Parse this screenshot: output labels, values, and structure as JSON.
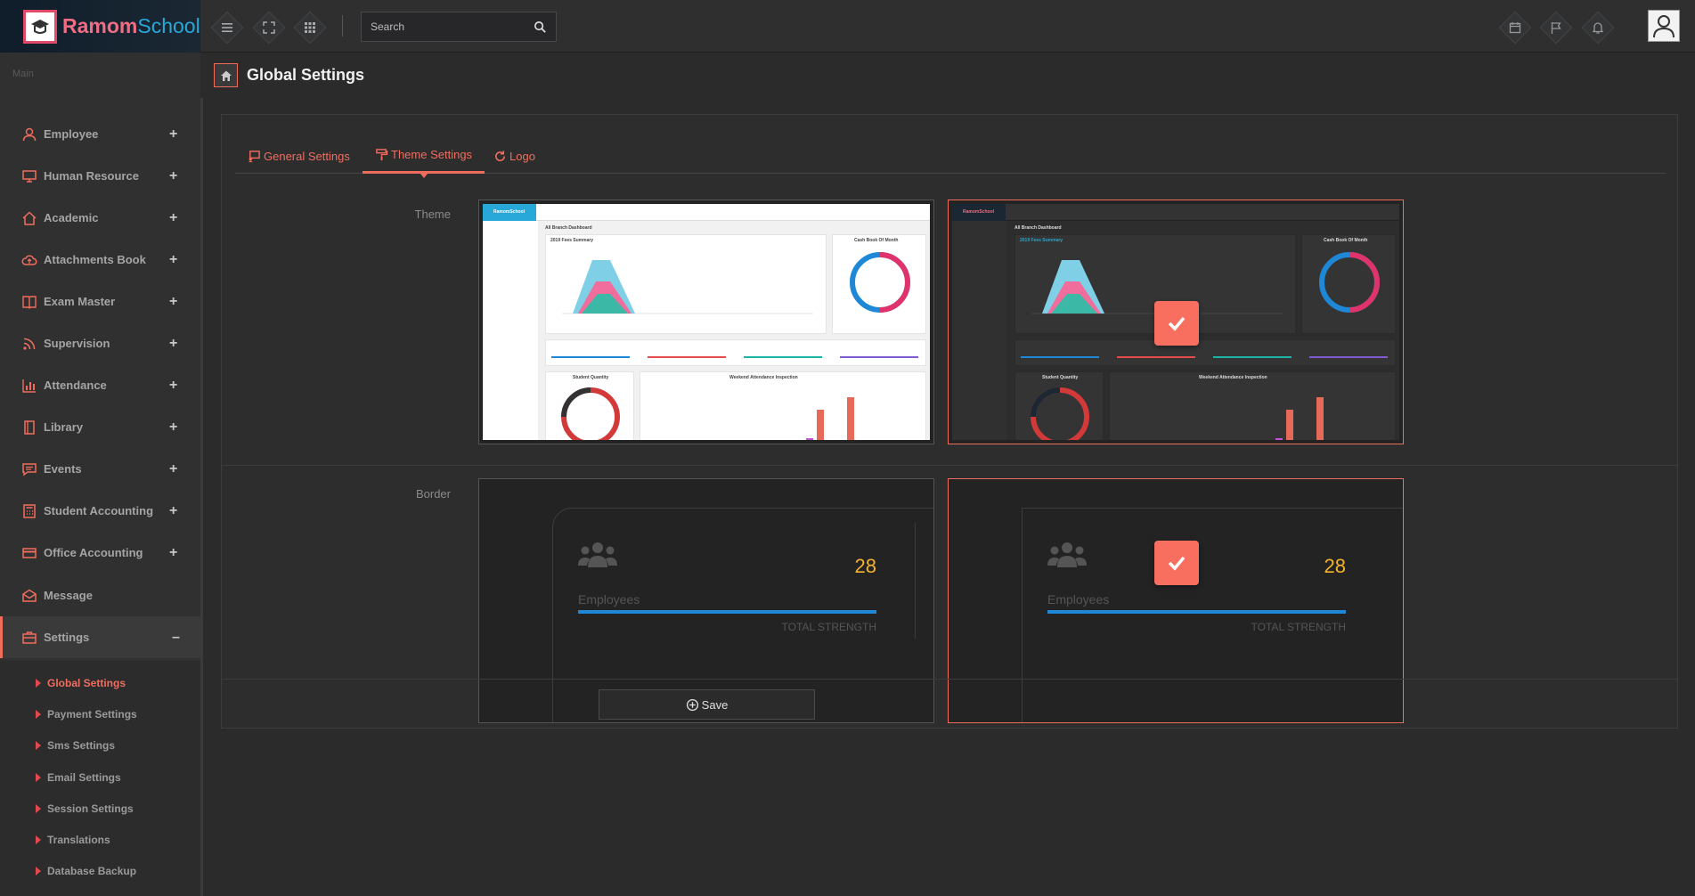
{
  "brand": {
    "part1": "Ramom",
    "part2": "School"
  },
  "search": {
    "placeholder": "Search"
  },
  "sidebar": {
    "title": "Main",
    "items": [
      {
        "label": "Employee",
        "icon": "user-icon"
      },
      {
        "label": "Human Resource",
        "icon": "monitor-icon"
      },
      {
        "label": "Academic",
        "icon": "home-icon"
      },
      {
        "label": "Attachments Book",
        "icon": "cloud-upload-icon"
      },
      {
        "label": "Exam Master",
        "icon": "book-icon"
      },
      {
        "label": "Supervision",
        "icon": "rss-icon"
      },
      {
        "label": "Attendance",
        "icon": "bar-chart-icon"
      },
      {
        "label": "Library",
        "icon": "library-icon"
      },
      {
        "label": "Events",
        "icon": "comment-icon"
      },
      {
        "label": "Student Accounting",
        "icon": "calculator-icon"
      },
      {
        "label": "Office Accounting",
        "icon": "credit-card-icon"
      },
      {
        "label": "Message",
        "icon": "envelope-icon"
      },
      {
        "label": "Settings",
        "icon": "briefcase-icon"
      }
    ],
    "sub_items": [
      "Global Settings",
      "Payment Settings",
      "Sms Settings",
      "Email Settings",
      "Session Settings",
      "Translations",
      "Database Backup"
    ]
  },
  "page": {
    "title": "Global Settings"
  },
  "tabs": [
    {
      "label": "General Settings"
    },
    {
      "label": "Theme Settings"
    },
    {
      "label": "Logo"
    }
  ],
  "theme_row": {
    "label": "Theme"
  },
  "border_row": {
    "label": "Border"
  },
  "preview": {
    "brand_part1": "Ramom",
    "brand_part2": "School",
    "dashboard_title": "All Branch Dashboard",
    "fees_title": "2019 Fees Summary",
    "cashbook_title": "Cash Book Of Month",
    "quantity_title": "Student Quantity",
    "attendance_title": "Weekend Attendance Inspection"
  },
  "border_card": {
    "count": "28",
    "label": "Employees",
    "sub": "TOTAL STRENGTH"
  },
  "save_label": "Save",
  "colors": {
    "accent": "#f06d5e",
    "bar": "#1e88d6",
    "count": "#f5b32b"
  }
}
